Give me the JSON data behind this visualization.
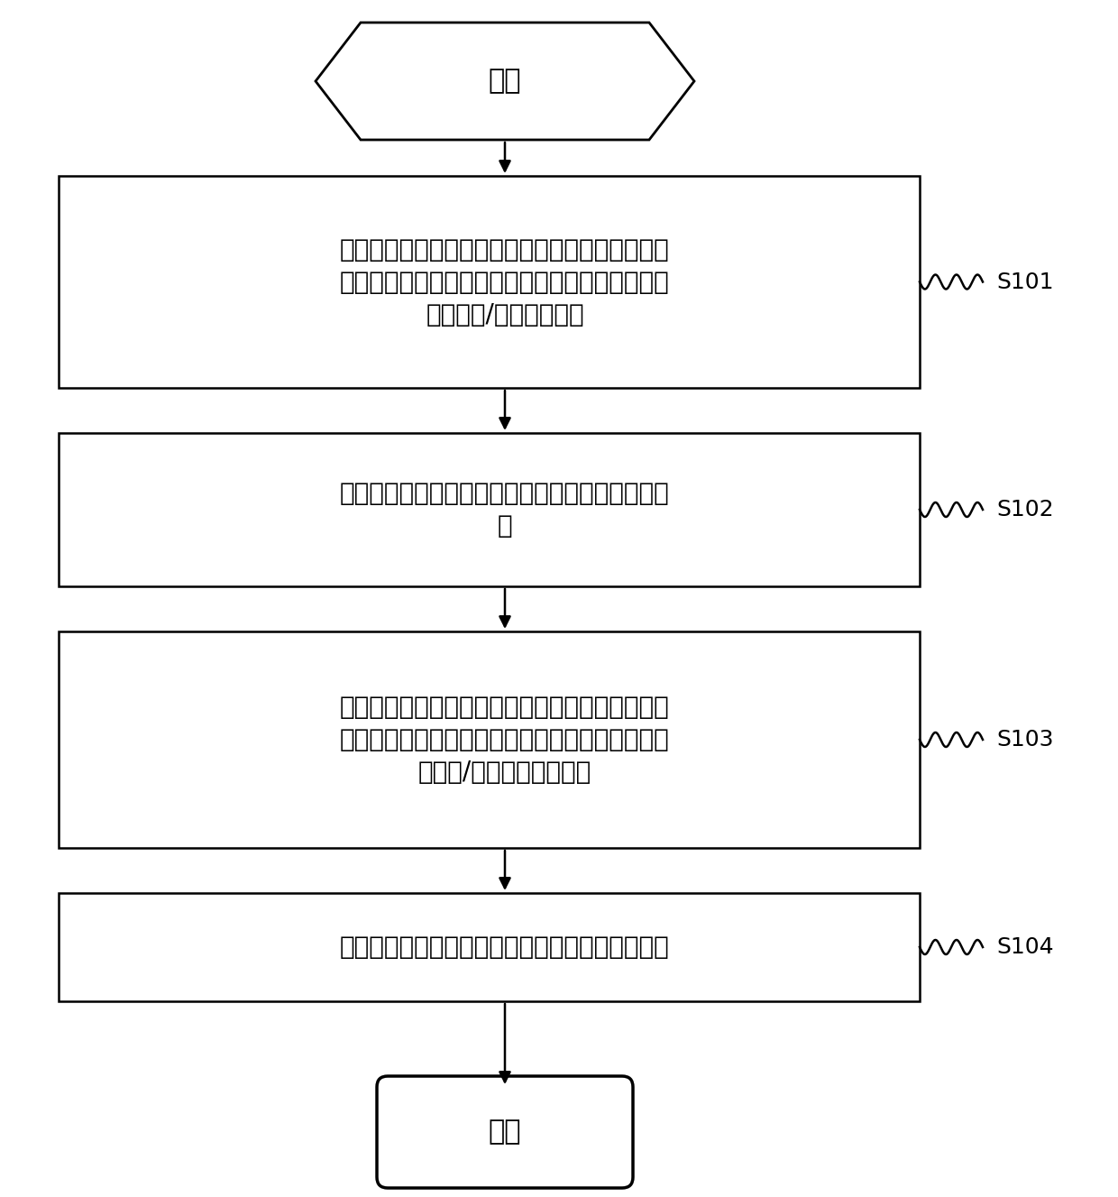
{
  "bg_color": "#ffffff",
  "line_color": "#000000",
  "text_color": "#000000",
  "font_size_box": 20,
  "font_size_label": 18,
  "font_size_terminal": 22,
  "start_text": "开始",
  "end_text": "结束",
  "box1_text_lines": [
    "获取管路组件中每一零件在所述管路组件中的空间",
    "位置姿态；其中，所述零件包括：导管，以及二通",
    "连接件和/或三通连接件"
  ],
  "box2_text_lines": [
    "获取导管弯折时的送管量、旋转角度和弯折角度信",
    "息"
  ],
  "box3_text_lines": [
    "根据所述弯折时的送管量、旋转角度和弯折角度信",
    "息及各零件的所述空间位置姿态，确定所述导管的",
    "首端和/或末端的刻线位置"
  ],
  "box4_text_lines": [
    "根据所述刻线位置，确定所述管路组件的焊装姿态"
  ],
  "labels": [
    "S101",
    "S102",
    "S103",
    "S104"
  ],
  "fig_width": 12.4,
  "fig_height": 13.27,
  "dpi": 100
}
